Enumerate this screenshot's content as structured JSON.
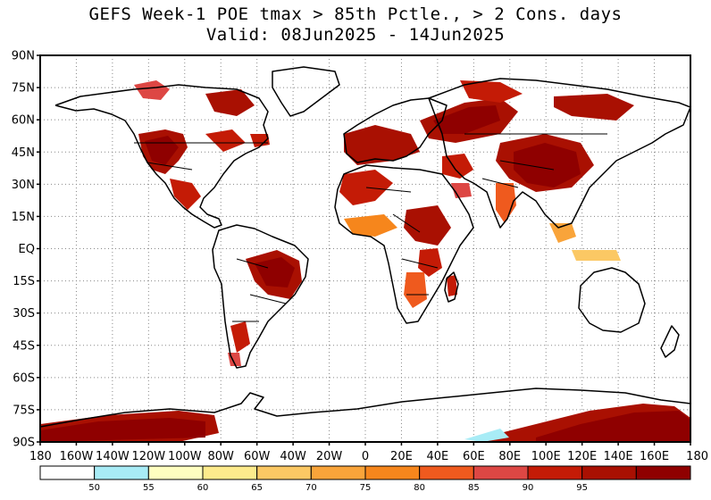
{
  "title_line1": "GEFS Week-1 POE tmax > 85th Pctle., > 2 Cons. days",
  "title_line2": "Valid: 08Jun2025 - 14Jun2025",
  "lat_labels": [
    "90N",
    "75N",
    "60N",
    "45N",
    "30N",
    "15N",
    "EQ",
    "15S",
    "30S",
    "45S",
    "60S",
    "75S",
    "90S"
  ],
  "lon_labels": [
    "180",
    "160W",
    "140W",
    "120W",
    "100W",
    "80W",
    "60W",
    "40W",
    "20W",
    "0",
    "20E",
    "40E",
    "60E",
    "80E",
    "100E",
    "120E",
    "140E",
    "160E",
    "180"
  ],
  "colorbar": {
    "colors": [
      "#ffffff",
      "#a8ecf6",
      "#fefec0",
      "#fdeb8c",
      "#fbc864",
      "#f9a43a",
      "#f6861c",
      "#ef5a1e",
      "#dd4744",
      "#c41b06",
      "#a91002",
      "#8f0000"
    ],
    "labels": [
      "50",
      "55",
      "60",
      "65",
      "70",
      "75",
      "80",
      "85",
      "90",
      "95"
    ]
  }
}
